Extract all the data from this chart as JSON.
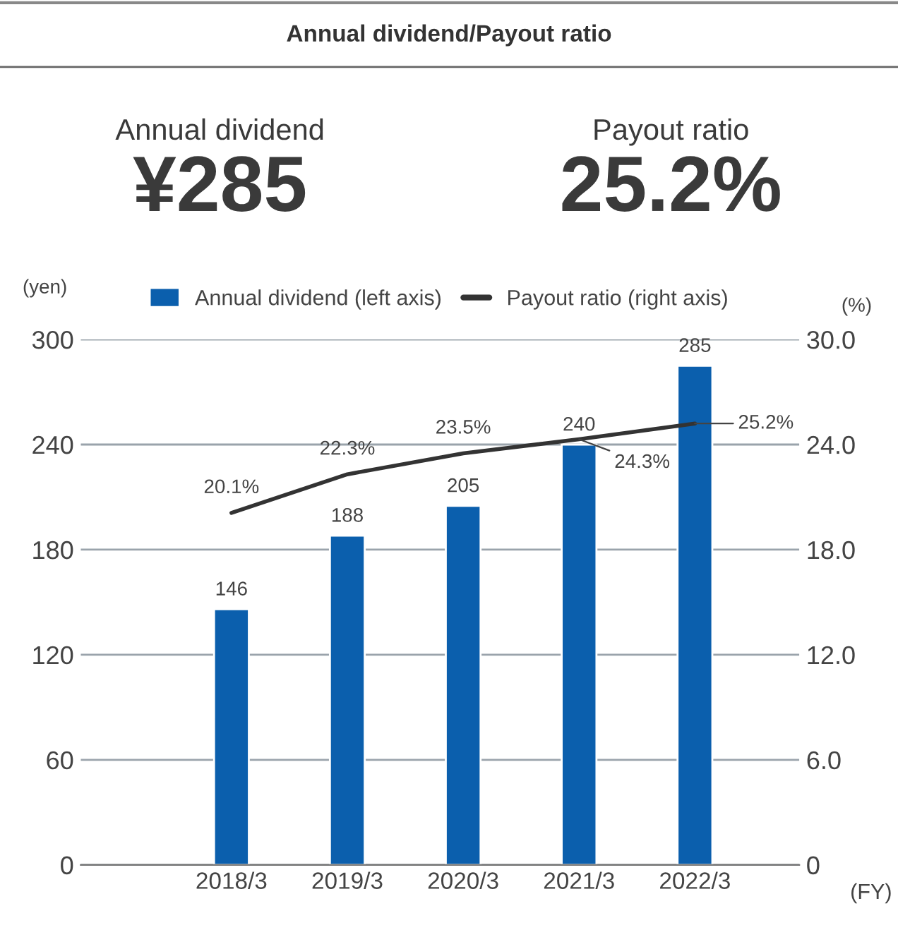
{
  "chart_data": {
    "type": "bar",
    "title": "Annual dividend/Payout ratio",
    "annotations": [
      "Annual dividend",
      "¥285",
      "Payout ratio",
      "25.2%"
    ],
    "categories": [
      "2018/3",
      "2019/3",
      "2020/3",
      "2021/3",
      "2022/3"
    ],
    "xlabel": "(FY)",
    "ylabel": "(yen)",
    "y2label": "(%)",
    "series": [
      {
        "name": "Annual dividend (left axis)",
        "color": "#0b5fad",
        "values": [
          146,
          188,
          205,
          240,
          285
        ],
        "value_labels": [
          "146",
          "188",
          "205",
          "240",
          "285"
        ]
      },
      {
        "name": "Payout ratio (right axis)",
        "type": "line",
        "axis": "y2",
        "color": "#333333",
        "values": [
          20.1,
          22.3,
          23.5,
          24.3,
          25.2
        ],
        "value_labels": [
          "20.1%",
          "22.3%",
          "23.5%",
          "24.3%",
          "25.2%"
        ]
      }
    ],
    "ylim": [
      0,
      300
    ],
    "yticks": [
      0,
      60,
      120,
      180,
      240,
      300
    ],
    "y2lim": [
      0,
      30
    ],
    "y2ticks": [
      {
        "value": 0,
        "label": "0"
      },
      {
        "value": 6,
        "label": "6.0"
      },
      {
        "value": 12,
        "label": "12.0"
      },
      {
        "value": 18,
        "label": "18.0"
      },
      {
        "value": 24,
        "label": "24.0"
      },
      {
        "value": 30,
        "label": "30.0"
      }
    ],
    "grid": "y",
    "legend": "top",
    "marker": "none",
    "line_style": "solid"
  }
}
